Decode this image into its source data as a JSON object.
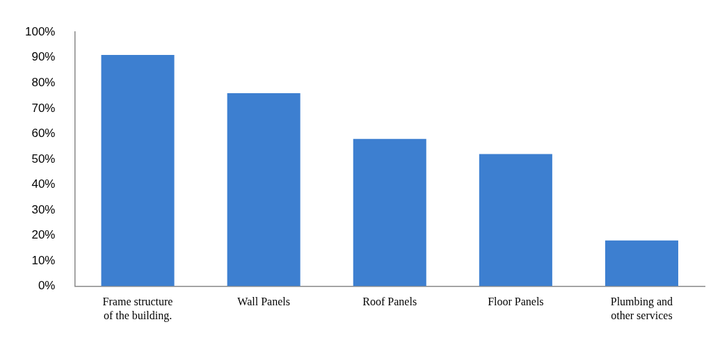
{
  "chart_data": {
    "type": "bar",
    "categories": [
      "Frame structure of the building.",
      "Wall Panels",
      "Roof Panels",
      "Floor Panels",
      "Plumbing and other services"
    ],
    "values": [
      91,
      76,
      58,
      52,
      18
    ],
    "color": "#3d7fd0",
    "ylim": [
      0,
      100
    ],
    "yticks": [
      {
        "value": 0,
        "label": "0%"
      },
      {
        "value": 10,
        "label": "10%"
      },
      {
        "value": 20,
        "label": "20%"
      },
      {
        "value": 30,
        "label": "30%"
      },
      {
        "value": 40,
        "label": "40%"
      },
      {
        "value": 50,
        "label": "50%"
      },
      {
        "value": 60,
        "label": "60%"
      },
      {
        "value": 70,
        "label": "70%"
      },
      {
        "value": 80,
        "label": "80%"
      },
      {
        "value": 90,
        "label": "90%"
      },
      {
        "value": 100,
        "label": "100%"
      }
    ],
    "grid": false
  }
}
